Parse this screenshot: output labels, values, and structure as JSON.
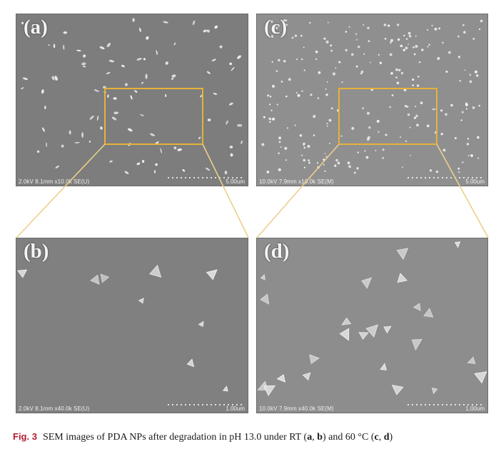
{
  "figure": {
    "panels": {
      "a": {
        "label": "(a)",
        "info": "2.0kV 8.1mm x10.0k SE(U)",
        "scale": "5.00um",
        "background": "#7d7d7d"
      },
      "b": {
        "label": "(b)",
        "info": "2.0kV 8.1mm x40.0k SE(U)",
        "scale": "1.00um",
        "background": "#808080"
      },
      "c": {
        "label": "(c)",
        "info": "10.0kV 7.9mm x10.0k SE(M)",
        "scale": "5.00um",
        "background": "#8f8f8f"
      },
      "d": {
        "label": "(d)",
        "info": "10.0kV 7.9mm x40.0k SE(M)",
        "scale": "1.00um",
        "background": "#8d8d8d"
      }
    },
    "zoom_color": "#e6b23a",
    "caption": {
      "fig_label": "Fig. 3",
      "fig_label_color": "#b01c2e",
      "text_1": "SEM images of PDA NPs after degradation in pH 13.0 under RT (",
      "b1": "a",
      "text_2": ", ",
      "b2": "b",
      "text_3": ") and 60 °C (",
      "b3": "c",
      "text_4": ", ",
      "b4": "d",
      "text_5": ")"
    }
  }
}
